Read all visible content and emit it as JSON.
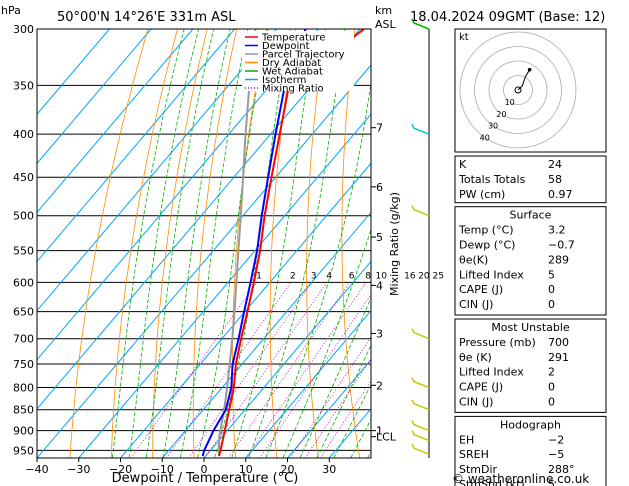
{
  "header": {
    "hpa_label": "hPa",
    "location": "50°00'N  14°26'E  331m  ASL",
    "km_label": "km",
    "asl_label": "ASL",
    "datetime": "18.04.2024  09GMT  (Base: 12)"
  },
  "chart_data": {
    "type": "line",
    "title": "Skew-T log-P sounding",
    "xlabel": "Dewpoint / Temperature (°C)",
    "ylabel": "hPa",
    "x_range": [
      -40,
      40
    ],
    "y_range_hpa": [
      300,
      970
    ],
    "pressure_ticks": [
      "300",
      "350",
      "400",
      "450",
      "500",
      "550",
      "600",
      "650",
      "700",
      "750",
      "800",
      "850",
      "900",
      "950"
    ],
    "temp_ticks": [
      "−40",
      "−30",
      "−20",
      "−10",
      "0",
      "10",
      "20",
      "30"
    ],
    "temp_tick_values": [
      -40,
      -30,
      -20,
      -10,
      0,
      10,
      20,
      30
    ],
    "km_ticks": [
      {
        "km": "LCL",
        "p": 915
      },
      {
        "km": "1",
        "p": 900
      },
      {
        "km": "2",
        "p": 795
      },
      {
        "km": "3",
        "p": 690
      },
      {
        "km": "4",
        "p": 605
      },
      {
        "km": "5",
        "p": 530
      },
      {
        "km": "6",
        "p": 462
      },
      {
        "km": "7",
        "p": 393
      }
    ],
    "mixing_ratio_label": "Mixing Ratio (g/kg)",
    "mixing_ratio_values": [
      "1",
      "2",
      "3",
      "4",
      "6",
      "8",
      "10",
      "16",
      "20",
      "25"
    ],
    "legend": [
      {
        "name": "Temperature",
        "color": "#ff0000",
        "style": "solid"
      },
      {
        "name": "Dewpoint",
        "color": "#0000ff",
        "style": "solid"
      },
      {
        "name": "Parcel Trajectory",
        "color": "#999999",
        "style": "solid"
      },
      {
        "name": "Dry Adiabat",
        "color": "#ff8c00",
        "style": "solid"
      },
      {
        "name": "Wet Adiabat",
        "color": "#00b000",
        "style": "solid"
      },
      {
        "name": "Isotherm",
        "color": "#00a5ff",
        "style": "solid"
      },
      {
        "name": "Mixing Ratio",
        "color": "#b000b0",
        "style": "dotted"
      }
    ],
    "series": [
      {
        "name": "Temperature",
        "points": [
          [
            965,
            3.2
          ],
          [
            950,
            2.4
          ],
          [
            900,
            -0.6
          ],
          [
            850,
            -3.8
          ],
          [
            800,
            -7.2
          ],
          [
            750,
            -11.5
          ],
          [
            700,
            -15.4
          ],
          [
            650,
            -19.4
          ],
          [
            600,
            -23.8
          ],
          [
            550,
            -28.8
          ],
          [
            500,
            -34.8
          ],
          [
            450,
            -41
          ],
          [
            400,
            -47.8
          ],
          [
            350,
            -55.5
          ],
          [
            330,
            -53
          ],
          [
            300,
            -49
          ]
        ]
      },
      {
        "name": "Dewpoint",
        "points": [
          [
            965,
            -0.7
          ],
          [
            950,
            -1.5
          ],
          [
            900,
            -3.3
          ],
          [
            850,
            -4.6
          ],
          [
            800,
            -7.8
          ],
          [
            750,
            -12.3
          ],
          [
            700,
            -16
          ],
          [
            650,
            -20.2
          ],
          [
            600,
            -24.6
          ],
          [
            550,
            -29.5
          ],
          [
            500,
            -35.5
          ],
          [
            450,
            -41.8
          ],
          [
            400,
            -48.8
          ],
          [
            350,
            -56.5
          ],
          [
            300,
            -63
          ]
        ]
      },
      {
        "name": "Parcel Trajectory",
        "points": [
          [
            965,
            3.2
          ],
          [
            915,
            -0.7
          ],
          [
            850,
            -5
          ],
          [
            800,
            -8.8
          ],
          [
            750,
            -13
          ],
          [
            700,
            -17.5
          ],
          [
            650,
            -22.5
          ],
          [
            600,
            -28
          ],
          [
            550,
            -34
          ],
          [
            500,
            -40.5
          ],
          [
            450,
            -47.8
          ],
          [
            400,
            -56
          ],
          [
            350,
            -65
          ],
          [
            300,
            -75
          ]
        ]
      }
    ],
    "wind_barbs": [
      {
        "p": 960,
        "color": "#c8c800"
      },
      {
        "p": 925,
        "color": "#c8c800"
      },
      {
        "p": 900,
        "color": "#c8c800"
      },
      {
        "p": 850,
        "color": "#c8c800"
      },
      {
        "p": 800,
        "color": "#c8c800"
      },
      {
        "p": 700,
        "color": "#a8d800"
      },
      {
        "p": 500,
        "color": "#a8d800"
      },
      {
        "p": 400,
        "color": "#00c8c8"
      },
      {
        "p": 300,
        "color": "#00b000"
      }
    ]
  },
  "hodograph": {
    "label": "kt",
    "ring_labels": [
      "10",
      "20",
      "30",
      "40"
    ],
    "trace_kt": [
      [
        0,
        0
      ],
      [
        1,
        1
      ],
      [
        3,
        3
      ],
      [
        4,
        6
      ],
      [
        5,
        9
      ],
      [
        8,
        14
      ]
    ]
  },
  "indices": {
    "top": [
      {
        "label": "K",
        "value": "24"
      },
      {
        "label": "Totals Totals",
        "value": "58"
      },
      {
        "label": "PW (cm)",
        "value": "0.97"
      }
    ],
    "surface": {
      "title": "Surface",
      "rows": [
        {
          "label": "Temp (°C)",
          "value": "3.2"
        },
        {
          "label": "Dewp (°C)",
          "value": "−0.7"
        },
        {
          "label": "θe(K)",
          "value": "289"
        },
        {
          "label": "Lifted Index",
          "value": "5"
        },
        {
          "label": "CAPE (J)",
          "value": "0"
        },
        {
          "label": "CIN (J)",
          "value": "0"
        }
      ]
    },
    "most_unstable": {
      "title": "Most Unstable",
      "rows": [
        {
          "label": "Pressure (mb)",
          "value": "700"
        },
        {
          "label": "θe (K)",
          "value": "291"
        },
        {
          "label": "Lifted Index",
          "value": "2"
        },
        {
          "label": "CAPE (J)",
          "value": "0"
        },
        {
          "label": "CIN (J)",
          "value": "0"
        }
      ]
    },
    "hodograph_box": {
      "title": "Hodograph",
      "rows": [
        {
          "label": "EH",
          "value": "−2"
        },
        {
          "label": "SREH",
          "value": "−5"
        },
        {
          "label": "StmDir",
          "value": "288°"
        },
        {
          "label": "StmSpd (kt)",
          "value": "5"
        }
      ]
    }
  },
  "footer": {
    "copyright": "© weatheronline.co.uk"
  }
}
